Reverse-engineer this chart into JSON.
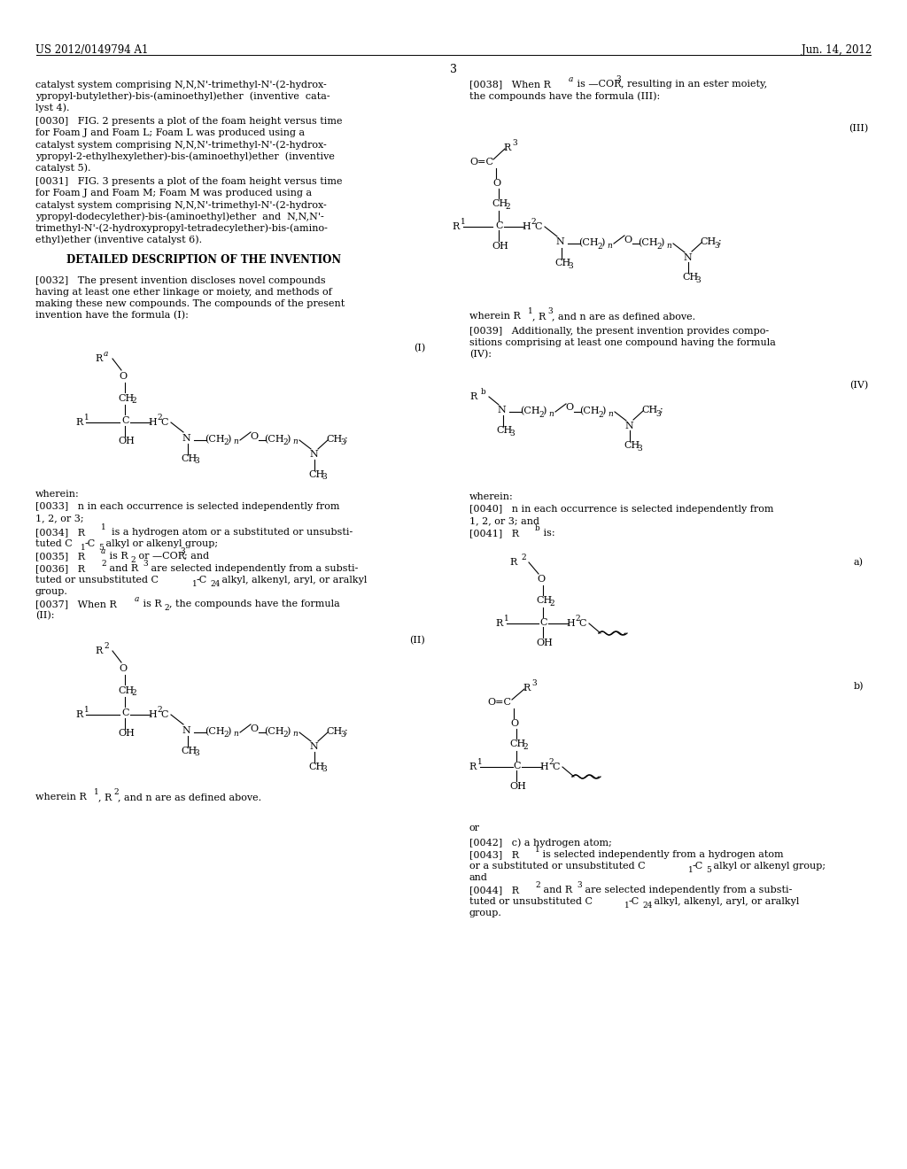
{
  "bg_color": "#ffffff",
  "header_left": "US 2012/0149794 A1",
  "header_right": "Jun. 14, 2012",
  "page_number": "3",
  "font_size": 8.5,
  "col_div": 0.5
}
